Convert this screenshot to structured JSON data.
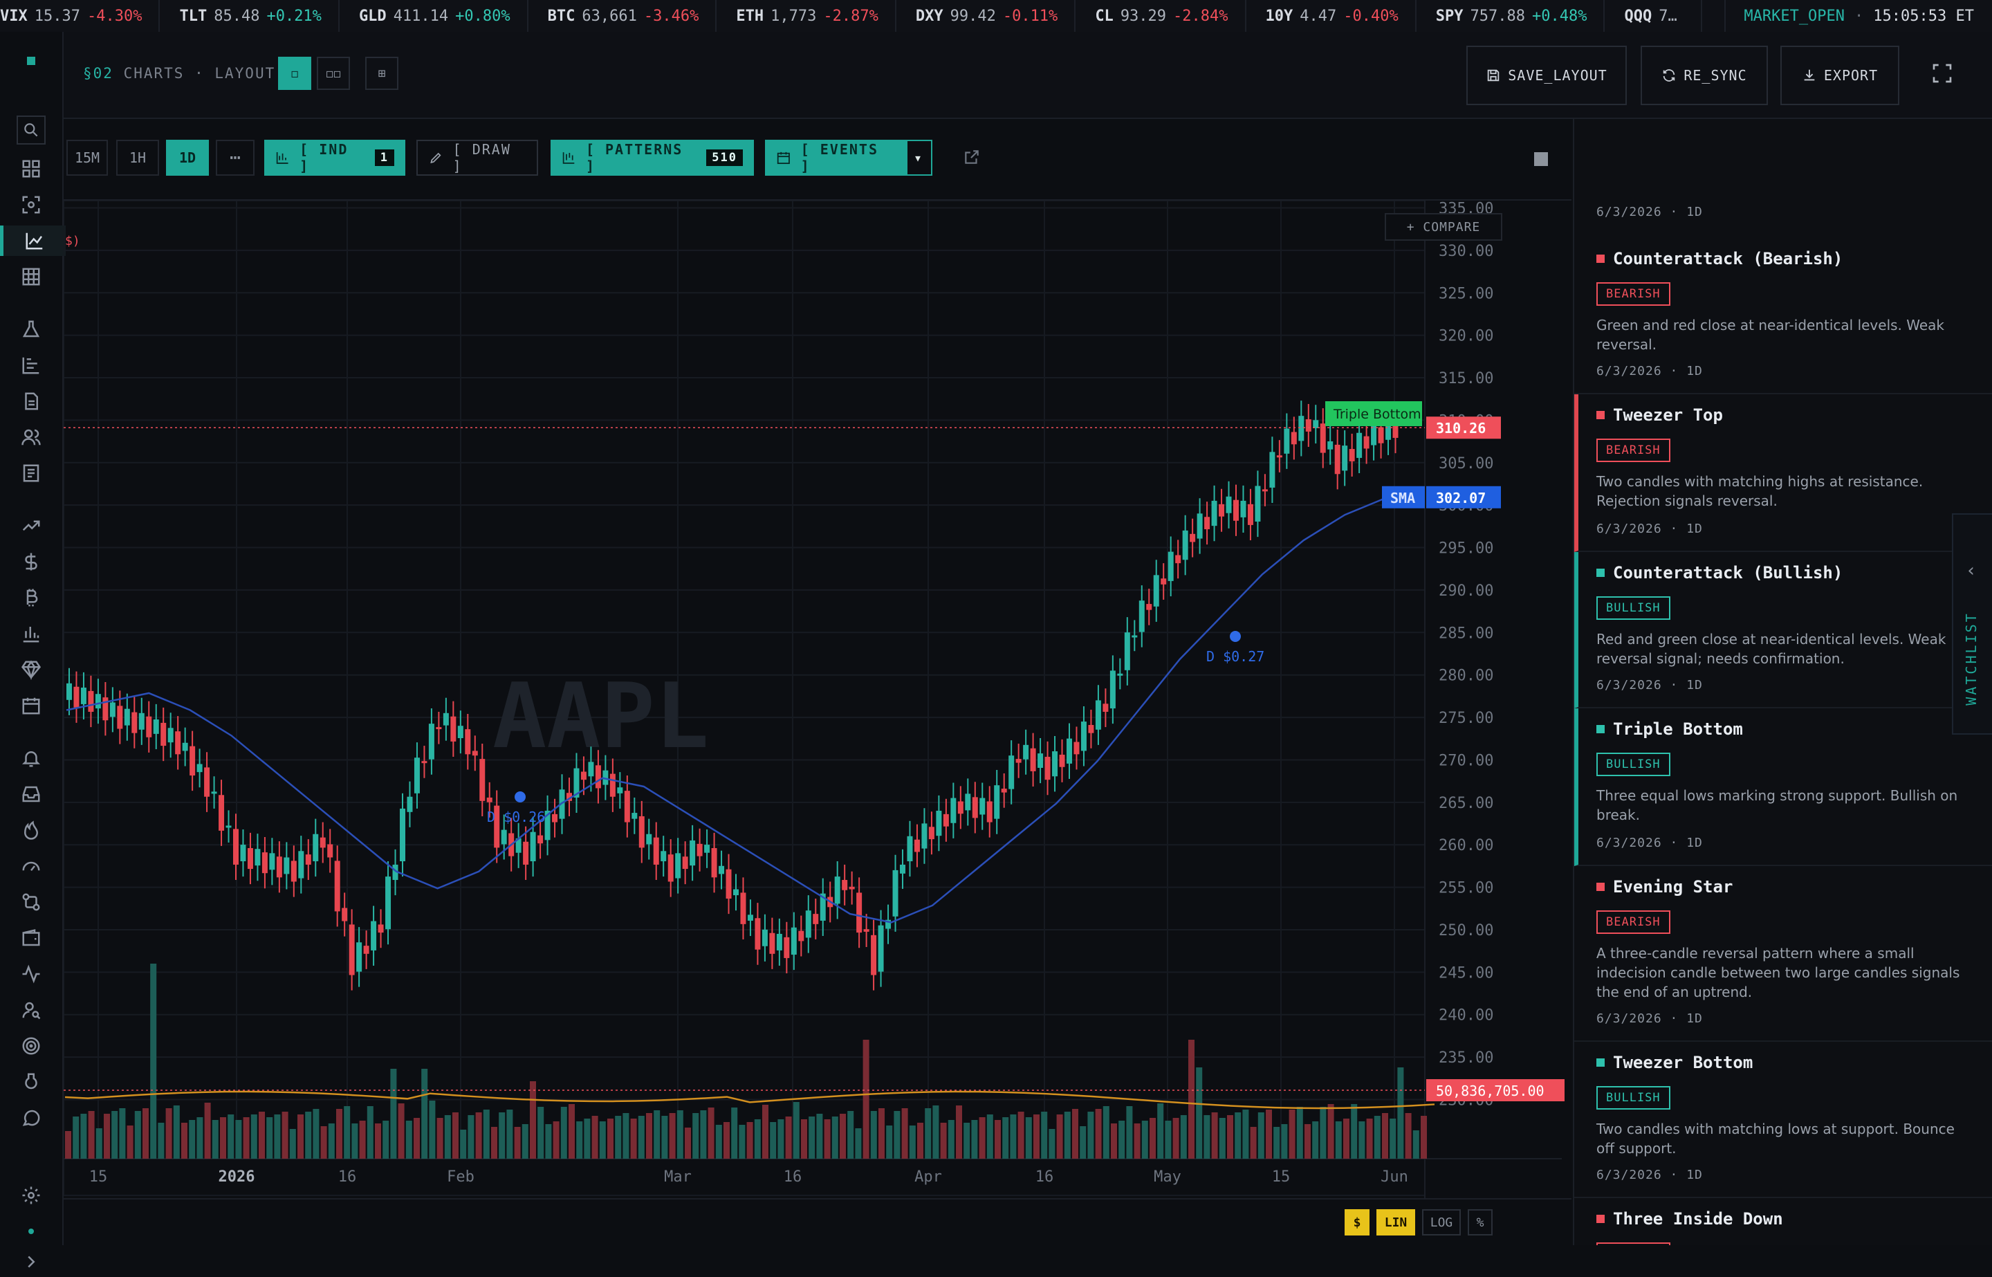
{
  "ticker": [
    {
      "sym": "VIX",
      "px": "15.37",
      "chg": "-4.30%",
      "dir": "neg"
    },
    {
      "sym": "TLT",
      "px": "85.48",
      "chg": "+0.21%",
      "dir": "pos"
    },
    {
      "sym": "GLD",
      "px": "411.14",
      "chg": "+0.80%",
      "dir": "pos"
    },
    {
      "sym": "BTC",
      "px": "63,661",
      "chg": "-3.46%",
      "dir": "neg"
    },
    {
      "sym": "ETH",
      "px": "1,773",
      "chg": "-2.87%",
      "dir": "neg"
    },
    {
      "sym": "DXY",
      "px": "99.42",
      "chg": "-0.11%",
      "dir": "neg"
    },
    {
      "sym": "CL",
      "px": "93.29",
      "chg": "-2.84%",
      "dir": "neg"
    },
    {
      "sym": "10Y",
      "px": "4.47",
      "chg": "-0.40%",
      "dir": "neg"
    },
    {
      "sym": "SPY",
      "px": "757.88",
      "chg": "+0.48%",
      "dir": "pos"
    },
    {
      "sym": "QQQ",
      "px": "7…",
      "chg": "",
      "dir": "pos"
    }
  ],
  "market": {
    "status": "MARKET_OPEN",
    "sep": "·",
    "time": "15:05:53 ET"
  },
  "header": {
    "section": "§02",
    "crumb": "CHARTS · LAYOUT",
    "layout_single": "◻",
    "layout_double": "◻◻",
    "layout_grid": "⊞",
    "save": "SAVE_LAYOUT",
    "resync": "RE_SYNC",
    "export": "EXPORT"
  },
  "toolbar": {
    "timeframes": [
      "15M",
      "1H",
      "1D"
    ],
    "active_tf": "1D",
    "more": "⋯",
    "ind": "[ IND ]",
    "ind_count": "1",
    "draw": "[ DRAW ]",
    "patterns": "[ PATTERNS ]",
    "patterns_count": "510",
    "events": "[ EVENTS ]",
    "events_caret": "▾"
  },
  "chart": {
    "symbol_watermark": "AAPL",
    "compare": "+ COMPARE",
    "corner_label": "$)",
    "price_label": "310.26",
    "sma_label": "SMA",
    "sma_value": "302.07",
    "volume_label": "50,836,705.00",
    "pattern_tag": "Triple Bottom",
    "div1": "D $0.26",
    "div2": "D $0.27",
    "y_ticks": [
      "335.00",
      "330.00",
      "325.00",
      "320.00",
      "315.00",
      "310.00",
      "305.00",
      "300.00",
      "295.00",
      "290.00",
      "285.00",
      "280.00",
      "275.00",
      "270.00",
      "265.00",
      "260.00",
      "255.00",
      "250.00",
      "245.00",
      "240.00",
      "235.00",
      "230.00"
    ],
    "x_ticks": [
      "15",
      "2026",
      "16",
      "Feb",
      "Mar",
      "16",
      "Apr",
      "16",
      "May",
      "15",
      "Jun"
    ]
  },
  "scale": {
    "currency": "$",
    "lin": "LIN",
    "log": "LOG",
    "pct": "%"
  },
  "chart_data": {
    "type": "candlestick",
    "symbol": "AAPL",
    "interval": "1D",
    "ylim": [
      228,
      337
    ],
    "x_labels": [
      "15",
      "2026",
      "16",
      "Feb",
      "Mar",
      "16",
      "Apr",
      "16",
      "May",
      "15",
      "Jun"
    ],
    "last_price": 310.26,
    "sma_last": 302.07,
    "last_volume": 50836705,
    "series": [
      {
        "name": "SMA",
        "values": [
          277,
          278,
          279,
          277,
          274,
          270,
          266,
          262,
          258,
          256,
          258,
          262,
          266,
          269,
          268,
          265,
          262,
          259,
          256,
          253,
          252,
          254,
          258,
          262,
          266,
          271,
          277,
          283,
          288,
          293,
          297,
          300,
          302
        ]
      }
    ],
    "closes": [
      278,
      276,
      275,
      273,
      268,
      260,
      259,
      258,
      262,
      247,
      252,
      268,
      276,
      273,
      262,
      260,
      265,
      270,
      268,
      262,
      258,
      261,
      256,
      250,
      249,
      253,
      257,
      247,
      260,
      263,
      266,
      265,
      272,
      270,
      273,
      278,
      287,
      293,
      298,
      301,
      300,
      308,
      311,
      306,
      309,
      310.26
    ]
  },
  "panel": {
    "top_date": "6/3/2026 · 1D",
    "cards": [
      {
        "title": "Counterattack (Bearish)",
        "badge": "BEARISH",
        "desc": "Green and red close at near-identical levels. Weak reversal.",
        "date": "6/3/2026 · 1D",
        "kind": "bear",
        "hl": ""
      },
      {
        "title": "Tweezer Top",
        "badge": "BEARISH",
        "desc": "Two candles with matching highs at resistance. Rejection signals reversal.",
        "date": "6/3/2026 · 1D",
        "kind": "bear",
        "hl": "r"
      },
      {
        "title": "Counterattack (Bullish)",
        "badge": "BULLISH",
        "desc": "Red and green close at near-identical levels. Weak reversal signal; needs confirmation.",
        "date": "6/3/2026 · 1D",
        "kind": "bull",
        "hl": "g"
      },
      {
        "title": "Triple Bottom",
        "badge": "BULLISH",
        "desc": "Three equal lows marking strong support. Bullish on break.",
        "date": "6/3/2026 · 1D",
        "kind": "bull",
        "hl": "g"
      },
      {
        "title": "Evening Star",
        "badge": "BEARISH",
        "desc": "A three-candle reversal pattern where a small indecision candle between two large candles signals the end of an uptrend.",
        "date": "6/3/2026 · 1D",
        "kind": "bear",
        "hl": ""
      },
      {
        "title": "Tweezer Bottom",
        "badge": "BULLISH",
        "desc": "Two candles with matching lows at support. Bounce off support.",
        "date": "6/3/2026 · 1D",
        "kind": "bull",
        "hl": ""
      },
      {
        "title": "Three Inside Down",
        "badge": "BEARISH",
        "desc": "",
        "date": "",
        "kind": "bear",
        "hl": ""
      }
    ]
  },
  "watchlist": {
    "label": "WATCHLIST",
    "chevron": "‹"
  },
  "colors": {
    "accent": "#1fa898",
    "bear": "#ef4f5a",
    "bull": "#2ec1ad",
    "sma": "#2b4fb8",
    "volavg": "#d4901f",
    "pattern": "#22c55e"
  }
}
